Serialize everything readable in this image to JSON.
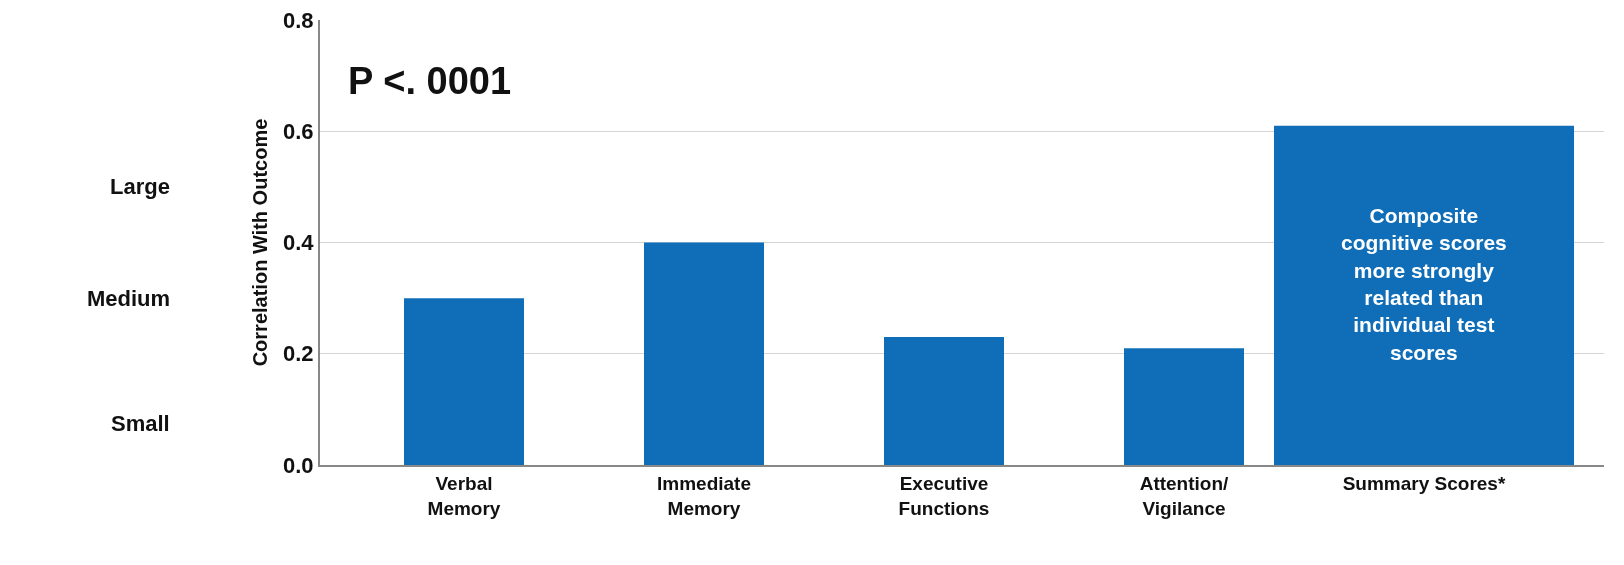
{
  "chart_data": {
    "type": "bar",
    "ylabel": "Correlation With Outcome",
    "categories": [
      "Verbal\nMemory",
      "Immediate\nMemory",
      "Executive\nFunctions",
      "Attention/\nVigilance",
      "Summary Scores*"
    ],
    "values": [
      0.3,
      0.4,
      0.23,
      0.21,
      0.61
    ],
    "color": "#0f6eb7",
    "ylim": [
      0,
      0.8
    ],
    "yticks": [
      {
        "value": 0,
        "label": "0.0"
      },
      0.2,
      0.4,
      0.6,
      0.8
    ],
    "grid": "y",
    "annotations": [
      "P <. 0001",
      "Composite\ncognitive scores\nmore strongly\nrelated than\nindividual test\nscores",
      "Small",
      "Medium",
      "Large"
    ]
  }
}
